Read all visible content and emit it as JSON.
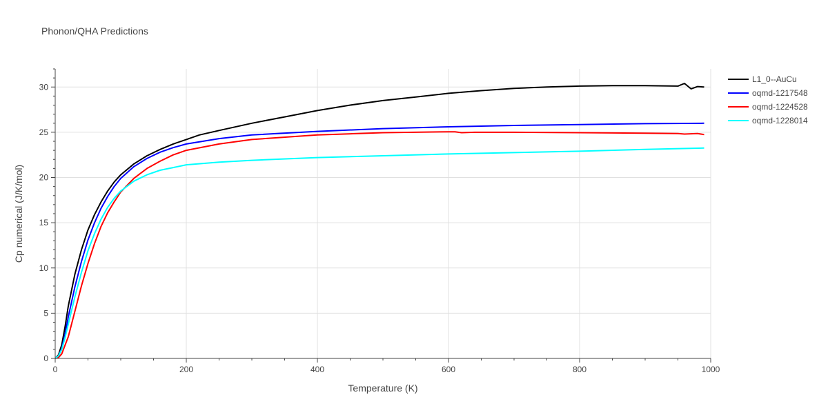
{
  "chart_data": {
    "type": "line",
    "title": "Phonon/QHA Predictions",
    "xlabel": "Temperature (K)",
    "ylabel": "Cp numerical (J/K/mol)",
    "xlim": [
      0,
      1000
    ],
    "ylim": [
      0,
      32
    ],
    "xticks": [
      0,
      200,
      400,
      600,
      800,
      1000
    ],
    "yticks": [
      0,
      5,
      10,
      15,
      20,
      25,
      30
    ],
    "grid": true,
    "legend_position": "top-right",
    "series": [
      {
        "name": "L1_0--AuCu",
        "color": "#000000",
        "points": [
          [
            0,
            0
          ],
          [
            5,
            0.4
          ],
          [
            10,
            1.5
          ],
          [
            15,
            3.5
          ],
          [
            20,
            5.8
          ],
          [
            30,
            9.3
          ],
          [
            40,
            12.0
          ],
          [
            50,
            14.2
          ],
          [
            60,
            15.9
          ],
          [
            70,
            17.3
          ],
          [
            80,
            18.5
          ],
          [
            90,
            19.5
          ],
          [
            100,
            20.3
          ],
          [
            120,
            21.5
          ],
          [
            140,
            22.4
          ],
          [
            160,
            23.1
          ],
          [
            180,
            23.7
          ],
          [
            200,
            24.2
          ],
          [
            220,
            24.7
          ],
          [
            250,
            25.2
          ],
          [
            300,
            26.0
          ],
          [
            350,
            26.7
          ],
          [
            400,
            27.4
          ],
          [
            450,
            28.0
          ],
          [
            500,
            28.5
          ],
          [
            550,
            28.9
          ],
          [
            600,
            29.3
          ],
          [
            650,
            29.6
          ],
          [
            700,
            29.85
          ],
          [
            750,
            30.0
          ],
          [
            800,
            30.1
          ],
          [
            850,
            30.15
          ],
          [
            900,
            30.15
          ],
          [
            950,
            30.1
          ],
          [
            960,
            30.4
          ],
          [
            970,
            29.8
          ],
          [
            980,
            30.05
          ],
          [
            990,
            30.0
          ]
        ]
      },
      {
        "name": "oqmd-1217548",
        "color": "#0000ff",
        "points": [
          [
            0,
            0
          ],
          [
            5,
            0.3
          ],
          [
            10,
            1.1
          ],
          [
            15,
            2.7
          ],
          [
            20,
            4.6
          ],
          [
            30,
            7.9
          ],
          [
            40,
            10.7
          ],
          [
            50,
            13.1
          ],
          [
            60,
            15.0
          ],
          [
            70,
            16.6
          ],
          [
            80,
            17.9
          ],
          [
            90,
            19.0
          ],
          [
            100,
            19.9
          ],
          [
            120,
            21.2
          ],
          [
            140,
            22.1
          ],
          [
            160,
            22.8
          ],
          [
            180,
            23.3
          ],
          [
            200,
            23.7
          ],
          [
            250,
            24.3
          ],
          [
            300,
            24.7
          ],
          [
            400,
            25.1
          ],
          [
            500,
            25.4
          ],
          [
            600,
            25.6
          ],
          [
            700,
            25.75
          ],
          [
            800,
            25.85
          ],
          [
            900,
            25.95
          ],
          [
            990,
            26.0
          ]
        ]
      },
      {
        "name": "oqmd-1224528",
        "color": "#ff0000",
        "points": [
          [
            0,
            0
          ],
          [
            5,
            0.1
          ],
          [
            10,
            0.5
          ],
          [
            20,
            2.4
          ],
          [
            30,
            5.2
          ],
          [
            40,
            8.0
          ],
          [
            50,
            10.5
          ],
          [
            60,
            12.7
          ],
          [
            70,
            14.6
          ],
          [
            80,
            16.1
          ],
          [
            90,
            17.3
          ],
          [
            100,
            18.4
          ],
          [
            120,
            19.9
          ],
          [
            140,
            21.0
          ],
          [
            160,
            21.8
          ],
          [
            180,
            22.5
          ],
          [
            200,
            23.0
          ],
          [
            250,
            23.7
          ],
          [
            300,
            24.2
          ],
          [
            400,
            24.7
          ],
          [
            500,
            24.95
          ],
          [
            600,
            25.05
          ],
          [
            610,
            25.05
          ],
          [
            620,
            24.95
          ],
          [
            640,
            25.0
          ],
          [
            700,
            25.0
          ],
          [
            800,
            24.95
          ],
          [
            900,
            24.9
          ],
          [
            950,
            24.85
          ],
          [
            960,
            24.8
          ],
          [
            980,
            24.85
          ],
          [
            990,
            24.75
          ]
        ]
      },
      {
        "name": "oqmd-1228014",
        "color": "#00ffff",
        "points": [
          [
            0,
            0
          ],
          [
            5,
            0.3
          ],
          [
            10,
            1.0
          ],
          [
            15,
            2.3
          ],
          [
            20,
            3.8
          ],
          [
            30,
            6.8
          ],
          [
            40,
            9.5
          ],
          [
            50,
            11.9
          ],
          [
            60,
            13.8
          ],
          [
            70,
            15.4
          ],
          [
            80,
            16.7
          ],
          [
            90,
            17.7
          ],
          [
            100,
            18.5
          ],
          [
            120,
            19.6
          ],
          [
            140,
            20.3
          ],
          [
            160,
            20.8
          ],
          [
            180,
            21.1
          ],
          [
            200,
            21.4
          ],
          [
            250,
            21.7
          ],
          [
            300,
            21.9
          ],
          [
            400,
            22.2
          ],
          [
            500,
            22.4
          ],
          [
            600,
            22.6
          ],
          [
            700,
            22.75
          ],
          [
            800,
            22.9
          ],
          [
            900,
            23.1
          ],
          [
            990,
            23.25
          ]
        ]
      }
    ]
  }
}
